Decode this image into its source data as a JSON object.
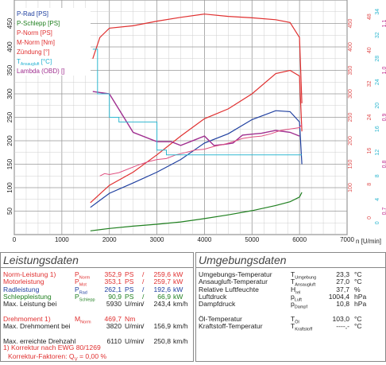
{
  "chart_data": {
    "type": "line",
    "xlabel": "n [U/min]",
    "xlim": [
      0,
      7000
    ],
    "x_ticks": [
      "0",
      "1000",
      "2000",
      "3000",
      "4000",
      "5000",
      "6000",
      "7000"
    ],
    "left_ticks": [
      "50",
      "100",
      "150",
      "200",
      "250",
      "300",
      "350",
      "400",
      "450"
    ],
    "right_axes": [
      {
        "ticks": [
          "100",
          "150",
          "200",
          "250",
          "300",
          "350",
          "400",
          "450"
        ],
        "color": "#e05050"
      },
      {
        "ticks": [
          "",
          "",
          "",
          "",
          "",
          "",
          "",
          ""
        ],
        "color": "#e05050"
      },
      {
        "ticks": [
          "0",
          "8",
          "16",
          "24",
          "32",
          "40",
          "48"
        ],
        "color": "#e05050"
      },
      {
        "ticks": [
          "0",
          "4",
          "8",
          "12",
          "16",
          "20",
          "24",
          "28",
          "32",
          "34"
        ],
        "color": "#30b8d0"
      },
      {
        "ticks": [
          "0,7",
          "0,8",
          "0,9",
          "1,0",
          "1,1"
        ],
        "color": "#c03090"
      }
    ],
    "legend": [
      {
        "name": "P-Rad [PS]",
        "color": "#2040a0"
      },
      {
        "name": "P-Schlepp [PS]",
        "color": "#208020"
      },
      {
        "name": "P-Norm [PS]",
        "color": "#e03030"
      },
      {
        "name": "M-Norm [Nm]",
        "color": "#e03030"
      },
      {
        "name": "Zündung [°]",
        "color": "#e03030"
      },
      {
        "name": "T",
        "sub": "Ansaugluft",
        "unit": " [°C]",
        "color": "#20b0d0"
      },
      {
        "name": "Lambda (OBD) []",
        "color": "#a03090"
      }
    ],
    "series": [
      {
        "name": "P-Rad [PS]",
        "color": "#2040a0",
        "x": [
          1600,
          2000,
          2500,
          3000,
          3500,
          4000,
          4500,
          5000,
          5500,
          5800,
          6000,
          6050
        ],
        "y": [
          58,
          88,
          110,
          133,
          160,
          195,
          215,
          245,
          264,
          262,
          240,
          150
        ]
      },
      {
        "name": "P-Schlepp [PS]",
        "color": "#208020",
        "x": [
          1600,
          2000,
          2500,
          3000,
          3500,
          4000,
          4500,
          5000,
          5500,
          5800,
          6000,
          6050
        ],
        "y": [
          8,
          13,
          18,
          22,
          27,
          34,
          42,
          51,
          62,
          70,
          80,
          90
        ]
      },
      {
        "name": "P-Norm [PS]",
        "color": "#e03030",
        "x": [
          1600,
          2000,
          2500,
          3000,
          3500,
          4000,
          4500,
          5000,
          5500,
          5800,
          6000,
          6050
        ],
        "y": [
          68,
          105,
          133,
          170,
          210,
          247,
          268,
          300,
          343,
          350,
          338,
          220
        ]
      },
      {
        "name": "M-Norm [Nm]",
        "color": "#e03030",
        "x": [
          1650,
          1800,
          2000,
          2500,
          3000,
          3500,
          4000,
          4500,
          5000,
          5500,
          5800,
          6000,
          6050
        ],
        "y": [
          375,
          420,
          440,
          445,
          455,
          463,
          470,
          465,
          462,
          458,
          452,
          420,
          280
        ]
      },
      {
        "name": "Lambda (OBD) []",
        "color": "#a03090",
        "x": [
          1650,
          2000,
          2500,
          3000,
          3300,
          3500,
          3800,
          4000,
          4200,
          4400,
          4600,
          4800,
          5000,
          5200,
          5500,
          5800,
          6000
        ],
        "y": [
          305,
          300,
          218,
          198,
          198,
          190,
          202,
          210,
          190,
          192,
          195,
          212,
          214,
          216,
          222,
          218,
          210
        ]
      }
    ]
  },
  "left_panel": {
    "title": "Leistungsdaten",
    "rows": [
      {
        "label": "Norm-Leistung",
        "sup": "1)",
        "sym": "P",
        "sub": "Norm",
        "v1": "352,9",
        "u1": "PS",
        "sep": "/",
        "v2": "259,6",
        "u2": "kW",
        "color": "#e03030"
      },
      {
        "label": "Motorleistung",
        "sup": "",
        "sym": "P",
        "sub": "Mot",
        "v1": "353,1",
        "u1": "PS",
        "sep": "/",
        "v2": "259,7",
        "u2": "kW",
        "color": "#e03030"
      },
      {
        "label": "Radleistung",
        "sup": "",
        "sym": "P",
        "sub": "Rad",
        "v1": "262,1",
        "u1": "PS",
        "sep": "/",
        "v2": "192,6",
        "u2": "kW",
        "color": "#2040a0"
      },
      {
        "label": "Schleppleistung",
        "sup": "",
        "sym": "P",
        "sub": "Schlepp",
        "v1": "90,9",
        "u1": "PS",
        "sep": "/",
        "v2": "66,9",
        "u2": "kW",
        "color": "#208020"
      },
      {
        "label": "Max. Leistung bei",
        "sup": "",
        "sym": "",
        "sub": "",
        "v1": "5930",
        "u1": "U/min",
        "sep": "/",
        "v2": "243,4",
        "u2": "km/h",
        "color": "#222222"
      },
      {
        "label": "",
        "sup": "",
        "sym": "",
        "sub": "",
        "v1": "",
        "u1": "",
        "sep": "",
        "v2": "",
        "u2": "",
        "color": "#222222"
      },
      {
        "label": "Drehmoment",
        "sup": "1)",
        "sym": "M",
        "sub": "Norm",
        "v1": "469,7",
        "u1": "Nm",
        "sep": "",
        "v2": "",
        "u2": "",
        "color": "#e03030"
      },
      {
        "label": "Max. Drehmoment bei",
        "sup": "",
        "sym": "",
        "sub": "",
        "v1": "3820",
        "u1": "U/min",
        "sep": "/",
        "v2": "156,9",
        "u2": "km/h",
        "color": "#222222"
      },
      {
        "label": "",
        "sup": "",
        "sym": "",
        "sub": "",
        "v1": "",
        "u1": "",
        "sep": "",
        "v2": "",
        "u2": "",
        "color": "#222222"
      },
      {
        "label": "Max. erreichte Drehzahl",
        "sup": "",
        "sym": "",
        "sub": "",
        "v1": "6110",
        "u1": "U/min",
        "sep": "/",
        "v2": "250,8",
        "u2": "km/h",
        "color": "#222222"
      }
    ],
    "footnote1": "1) Korrektur nach EWG 80/1269",
    "footnote2_label": "Korrektur-Faktoren: Q",
    "footnote2_sub": "V",
    "footnote2_value": " =   0,00 %"
  },
  "right_panel": {
    "title": "Umgebungsdaten",
    "rows": [
      {
        "label": "Umgebungs-Temperatur",
        "sym": "T",
        "sub": "Umgebung",
        "value": "23,3",
        "unit": "°C"
      },
      {
        "label": "Ansaugluft-Temperatur",
        "sym": "T",
        "sub": "Ansaugluft",
        "value": "27,0",
        "unit": "°C"
      },
      {
        "label": "Relative Luftfeuchte",
        "sym": "H",
        "sub": "rel",
        "value": "37,7",
        "unit": "%"
      },
      {
        "label": "Luftdruck",
        "sym": "p",
        "sub": "Luft",
        "value": "1004,4",
        "unit": "hPa"
      },
      {
        "label": "Dampfdruck",
        "sym": "p",
        "sub": "Dampf",
        "value": "10,8",
        "unit": "hPa"
      },
      {
        "label": "",
        "sym": "",
        "sub": "",
        "value": "",
        "unit": ""
      },
      {
        "label": "Öl-Temperatur",
        "sym": "T",
        "sub": "Öl",
        "value": "103,0",
        "unit": "°C"
      },
      {
        "label": "Kraftstoff-Temperatur",
        "sym": "T",
        "sub": "Kraftstoff",
        "value": "----,-",
        "unit": "°C"
      }
    ]
  }
}
